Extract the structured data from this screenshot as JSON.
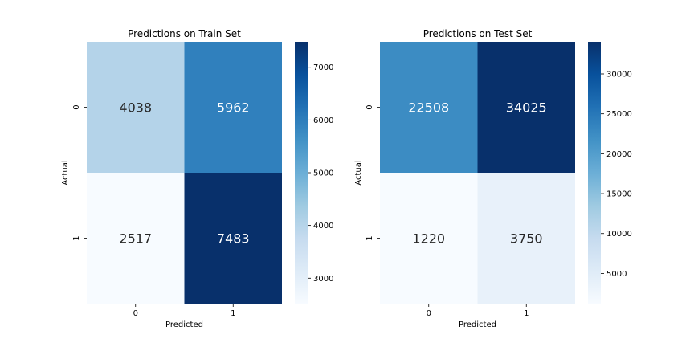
{
  "chart_data": [
    {
      "type": "heatmap",
      "title": "Predictions on Train Set",
      "xlabel": "Predicted",
      "ylabel": "Actual",
      "x_categories": [
        "0",
        "1"
      ],
      "y_categories": [
        "0",
        "1"
      ],
      "values": [
        [
          4038,
          5962
        ],
        [
          2517,
          7483
        ]
      ],
      "cell_labels": [
        [
          "4038",
          "5962"
        ],
        [
          "2517",
          "7483"
        ]
      ],
      "colorbar": {
        "min": 2517,
        "max": 7483,
        "ticks": [
          3000,
          4000,
          5000,
          6000,
          7000
        ],
        "tick_labels": [
          "3000",
          "4000",
          "5000",
          "6000",
          "7000"
        ]
      },
      "colormap": "Blues"
    },
    {
      "type": "heatmap",
      "title": "Predictions on Test Set",
      "xlabel": "Predicted",
      "ylabel": "Actual",
      "x_categories": [
        "0",
        "1"
      ],
      "y_categories": [
        "0",
        "1"
      ],
      "values": [
        [
          22508,
          34025
        ],
        [
          1220,
          3750
        ]
      ],
      "cell_labels": [
        [
          "22508",
          "34025"
        ],
        [
          "1220",
          "3750"
        ]
      ],
      "colorbar": {
        "min": 1220,
        "max": 34025,
        "ticks": [
          5000,
          10000,
          15000,
          20000,
          25000,
          30000
        ],
        "tick_labels": [
          "5000",
          "10000",
          "15000",
          "20000",
          "25000",
          "30000"
        ]
      },
      "colormap": "Blues"
    }
  ]
}
